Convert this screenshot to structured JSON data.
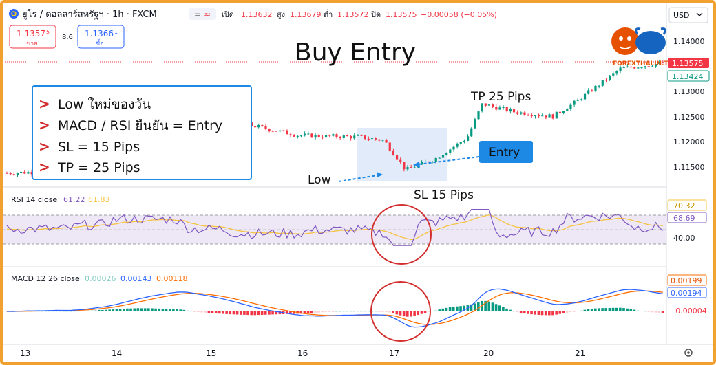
{
  "header": {
    "symbol": "ยูโร / ดอลลาร์สหรัฐฯ · 1h · FXCM",
    "ohlc": [
      {
        "label": "เปิด",
        "value": "1.13632"
      },
      {
        "label": "สูง",
        "value": "1.13679"
      },
      {
        "label": "ต่ำ",
        "value": "1.13572"
      },
      {
        "label": "ปิด",
        "value": "1.13575"
      }
    ],
    "change": "−0.00058 (−0.05%)",
    "currency": "USD"
  },
  "trade": {
    "sell_price": "1.1357",
    "sell_sup": "5",
    "sell_label": "ขาย",
    "spread": "8.6",
    "buy_price": "1.1366",
    "buy_sup": "1",
    "buy_label": "ซื้อ"
  },
  "brand": "FOREXTHALIN.TH",
  "annotations": {
    "title": "Buy Entry",
    "rules": [
      "Low ใหม่ของวัน",
      "MACD / RSI ยืนยัน = Entry",
      "SL = 15 Pips",
      "TP = 25 Pips"
    ],
    "rule_marker": ">",
    "tp": "TP 25 Pips",
    "sl": "SL 15 Pips",
    "low": "Low",
    "entry": "Entry"
  },
  "price_axis": {
    "ticks": [
      "1.14000",
      "1.13500",
      "1.13000",
      "1.12500",
      "1.12000",
      "1.11500"
    ],
    "last_price": "1.13575",
    "ma_price": "1.13424"
  },
  "rsi": {
    "label": "RSI 14 close",
    "v1": "61.22",
    "v2": "61.83",
    "axis_tick": "40.00",
    "badge1": "70.32",
    "badge2": "68.69"
  },
  "macd": {
    "label": "MACD 12 26 close",
    "v1": "0.00026",
    "v2": "0.00143",
    "v3": "0.00118",
    "badge1": "0.00199",
    "badge2": "0.00194",
    "badge3": "−0.00004"
  },
  "time_axis": [
    "13",
    "14",
    "15",
    "16",
    "17",
    "20",
    "21"
  ],
  "colors": {
    "up": "#089981",
    "down": "#f23645",
    "rsi": "#7e57c2",
    "rsi_ma": "#f7c33e",
    "macd": "#2962ff",
    "signal": "#ff6d00",
    "callout": "#1e88e5",
    "circle": "#d32f2f"
  },
  "chart_data": {
    "type": "line",
    "title": "Buy Entry",
    "x": [
      "13",
      "14",
      "15",
      "16",
      "17",
      "20",
      "21"
    ],
    "ylim": [
      1.113,
      1.1425
    ],
    "series": [
      {
        "values": [
          1.1145,
          1.1162,
          1.1248,
          1.1212,
          1.1152,
          1.125,
          1.1348
        ]
      }
    ]
  }
}
